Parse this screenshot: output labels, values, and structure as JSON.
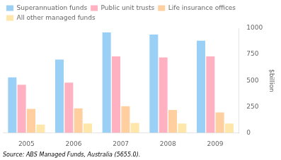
{
  "chart_data": {
    "type": "bar",
    "categories": [
      "2005",
      "2006",
      "2007",
      "2008",
      "2009"
    ],
    "series": [
      {
        "name": "Superannuation funds",
        "values": [
          530,
          700,
          960,
          940,
          880
        ]
      },
      {
        "name": "Public unit trusts",
        "values": [
          460,
          480,
          730,
          720,
          730
        ]
      },
      {
        "name": "Life insurance offices",
        "values": [
          230,
          235,
          255,
          220,
          195
        ]
      },
      {
        "name": "All other managed funds",
        "values": [
          80,
          90,
          95,
          90,
          90
        ]
      }
    ],
    "ylabel": "$billion",
    "annotations": [
      "Source: ABS Managed Funds, Australia (5655.0)."
    ],
    "ylim": [
      0,
      1000
    ],
    "yticks": [
      0,
      250,
      500,
      750,
      1000
    ],
    "grid": false,
    "legend": "upper left"
  }
}
